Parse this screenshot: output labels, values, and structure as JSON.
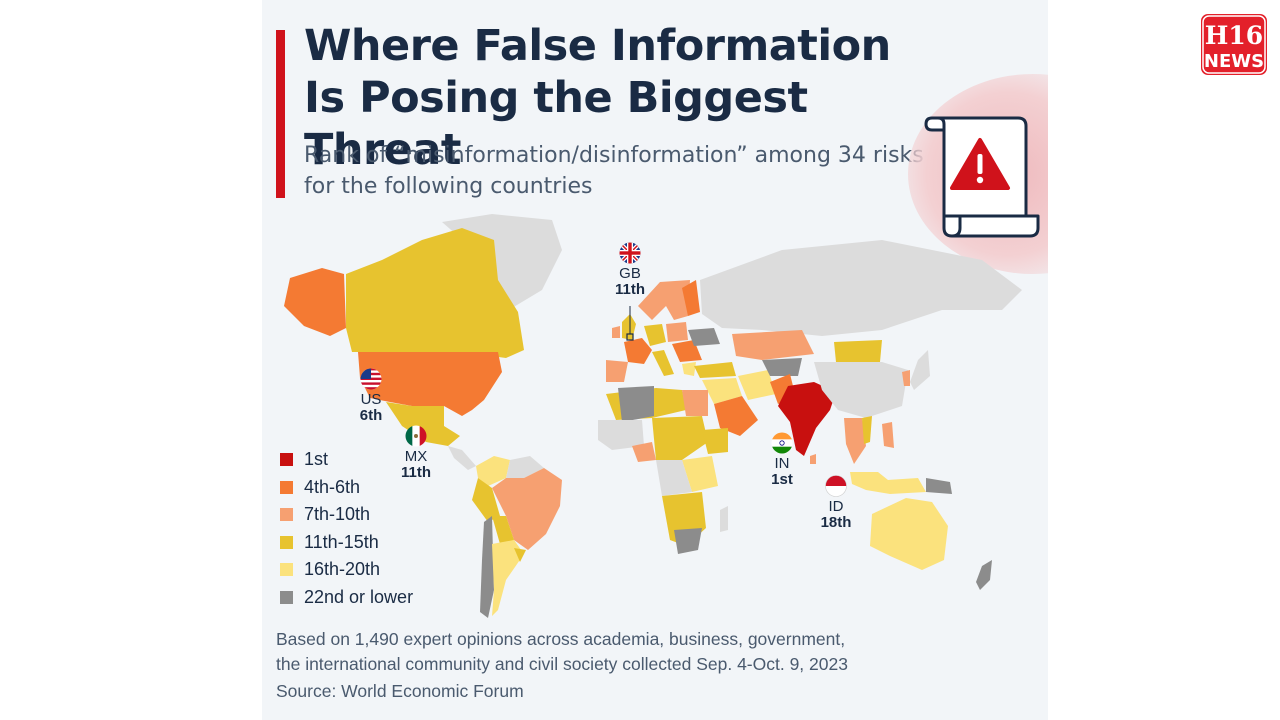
{
  "header": {
    "title": "Where False Information Is Posing the Biggest Threat",
    "subtitle": "Rank of “misinformation/disinformation” among 34 risks for the following countries"
  },
  "legend": [
    {
      "label": "1st",
      "color": "#c8100f"
    },
    {
      "label": "4th-6th",
      "color": "#f47a33"
    },
    {
      "label": "7th-10th",
      "color": "#f6a071"
    },
    {
      "label": "11th-15th",
      "color": "#e7c32f"
    },
    {
      "label": "16th-20th",
      "color": "#fbe27d"
    },
    {
      "label": "22nd or lower",
      "color": "#8c8c8c"
    }
  ],
  "colors": {
    "no_data": "#dcdcdc",
    "accent": "#d0121b",
    "title": "#1a2b44",
    "background": "#f2f5f8"
  },
  "callouts": {
    "gb": {
      "code": "GB",
      "rank": "11th",
      "flag_icon": "uk-flag-icon"
    },
    "us": {
      "code": "US",
      "rank": "6th",
      "flag_icon": "us-flag-icon"
    },
    "mx": {
      "code": "MX",
      "rank": "11th",
      "flag_icon": "mexico-flag-icon"
    },
    "in": {
      "code": "IN",
      "rank": "1st",
      "flag_icon": "india-flag-icon"
    },
    "id": {
      "code": "ID",
      "rank": "18th",
      "flag_icon": "indonesia-flag-icon"
    }
  },
  "footnote": {
    "line1": "Based on 1,490 expert opinions across academia, business, government,",
    "line2": "the international community and civil society collected Sep. 4-Oct. 9, 2023"
  },
  "source": "Source: World Economic Forum",
  "logo": {
    "top": "H16",
    "bottom": "NEWS",
    "color": "#e3202a"
  }
}
